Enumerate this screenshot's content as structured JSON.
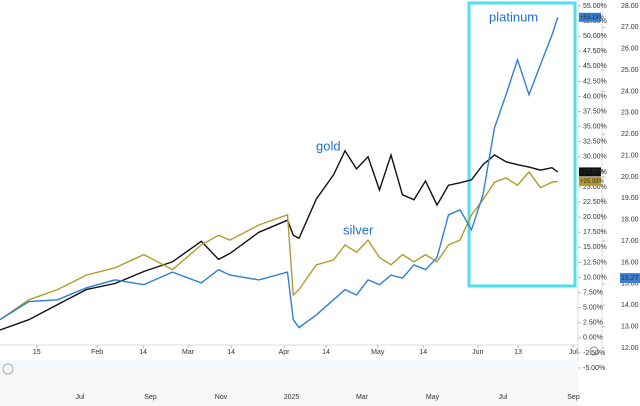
{
  "chart_data": {
    "type": "line",
    "xlim": [
      0,
      100
    ],
    "xticks": [
      {
        "value": 6.4,
        "label": "15"
      },
      {
        "value": 16.9,
        "label": "Feb"
      },
      {
        "value": 24.9,
        "label": "14"
      },
      {
        "value": 32.7,
        "label": "Mar"
      },
      {
        "value": 40.2,
        "label": "14"
      },
      {
        "value": 49.4,
        "label": "Apr"
      },
      {
        "value": 56.7,
        "label": "14"
      },
      {
        "value": 65.7,
        "label": "May"
      },
      {
        "value": 73.6,
        "label": "14"
      },
      {
        "value": 83.1,
        "label": "Jun"
      },
      {
        "value": 90.1,
        "label": "13"
      },
      {
        "value": 99.7,
        "label": "Jul"
      }
    ],
    "navigator_labels": [
      "Jul",
      "Sep",
      "Nov",
      "2025",
      "Mar",
      "May",
      "Jul",
      "Sep"
    ],
    "ylim": [
      -5,
      55
    ],
    "yticks": [
      {
        "value": 55,
        "label": "55.00%"
      },
      {
        "value": 52.5,
        "label": "52.50%"
      },
      {
        "value": 50,
        "label": "50.00%"
      },
      {
        "value": 47.5,
        "label": "47.50%"
      },
      {
        "value": 45,
        "label": "45.00%"
      },
      {
        "value": 42.5,
        "label": "42.50%"
      },
      {
        "value": 40,
        "label": "40.00%"
      },
      {
        "value": 37.5,
        "label": "37.50%"
      },
      {
        "value": 35,
        "label": "35.00%"
      },
      {
        "value": 32.5,
        "label": "32.50%"
      },
      {
        "value": 30,
        "label": "30.00%"
      },
      {
        "value": 27.5,
        "label": "27.50%"
      },
      {
        "value": 25,
        "label": "25.00%"
      },
      {
        "value": 22.5,
        "label": "22.50%"
      },
      {
        "value": 20,
        "label": "20.00%"
      },
      {
        "value": 17.5,
        "label": "17.50%"
      },
      {
        "value": 15,
        "label": "15.00%"
      },
      {
        "value": 12.5,
        "label": "12.50%"
      },
      {
        "value": 10,
        "label": "10.00%"
      },
      {
        "value": 7.5,
        "label": "7.50%"
      },
      {
        "value": 5,
        "label": "5.00%"
      },
      {
        "value": 2.5,
        "label": "2.50%"
      },
      {
        "value": 0,
        "label": "0.00%"
      },
      {
        "value": -2.5,
        "label": "-2.50%"
      },
      {
        "value": -5,
        "label": "-5.00%"
      }
    ],
    "y2lim": [
      12,
      28
    ],
    "y2ticks": [
      {
        "value": 28,
        "label": "28.00"
      },
      {
        "value": 27,
        "label": "27.00"
      },
      {
        "value": 26,
        "label": "26.00"
      },
      {
        "value": 25,
        "label": "25.00"
      },
      {
        "value": 24,
        "label": "24.00"
      },
      {
        "value": 23,
        "label": "23.00"
      },
      {
        "value": 22,
        "label": "22.00"
      },
      {
        "value": 21,
        "label": "21.00"
      },
      {
        "value": 20,
        "label": "20.00"
      },
      {
        "value": 19,
        "label": "19.00"
      },
      {
        "value": 18,
        "label": "18.00"
      },
      {
        "value": 17,
        "label": "17.00"
      },
      {
        "value": 16,
        "label": "16.00"
      },
      {
        "value": 15,
        "label": "15.00"
      },
      {
        "value": 14,
        "label": "14.00"
      },
      {
        "value": 13,
        "label": "13.00"
      },
      {
        "value": 12,
        "label": "12.00"
      }
    ],
    "y2_marker": {
      "value": 15.27,
      "label": "15.27"
    },
    "x": [
      0,
      5,
      10,
      15,
      20,
      25,
      30,
      35,
      38,
      40,
      45,
      50,
      51,
      52,
      55,
      58,
      60,
      62,
      64,
      66,
      68,
      70,
      72,
      74,
      76,
      78,
      80,
      82,
      84,
      86,
      88,
      90,
      92,
      94,
      96,
      97
    ],
    "series": [
      {
        "name": "gold",
        "color": "#111111",
        "end_value": 27.5,
        "end_label": "+27.50%",
        "values": [
          1.3,
          3,
          5.5,
          8,
          9,
          11,
          12.6,
          16,
          13,
          14,
          17.5,
          19.5,
          17,
          16.5,
          23,
          27,
          31,
          28,
          30,
          24.5,
          30.3,
          23.7,
          22.9,
          26,
          22,
          25.3,
          25.7,
          26.2,
          28.7,
          30.3,
          29.2,
          28.7,
          28.3,
          27.8,
          28.2,
          27.5
        ]
      },
      {
        "name": "silver",
        "color": "#b39a2b",
        "end_value": 25.93,
        "end_label": "+25.93%",
        "values": [
          3,
          6.3,
          8,
          10.4,
          11.6,
          13.8,
          11.3,
          15.4,
          17,
          16.2,
          18.7,
          20.4,
          7.1,
          8,
          12.1,
          12.9,
          15.4,
          14.2,
          16.2,
          13.3,
          12.1,
          13.8,
          12.6,
          13.8,
          12.6,
          15.4,
          16.2,
          20.4,
          22.9,
          25.8,
          26.5,
          25.3,
          27.5,
          24.9,
          25.8,
          25.93
        ]
      },
      {
        "name": "platinum",
        "color": "#2f7fd6",
        "end_value": 53.13,
        "end_label": "+53.13%",
        "values": [
          3,
          6,
          6.3,
          8.3,
          9.6,
          8.8,
          10.9,
          9.1,
          11.3,
          10.4,
          9.6,
          10.9,
          3,
          1.7,
          3.8,
          6.3,
          8,
          7.1,
          9.6,
          8.8,
          10.4,
          9.9,
          12.1,
          11.3,
          13.3,
          20.4,
          21.2,
          17.9,
          23.7,
          34.8,
          40.3,
          46.1,
          40.3,
          45.3,
          50.2,
          53.13
        ]
      }
    ],
    "annotations": [
      "platinum",
      "gold",
      "silver"
    ]
  }
}
